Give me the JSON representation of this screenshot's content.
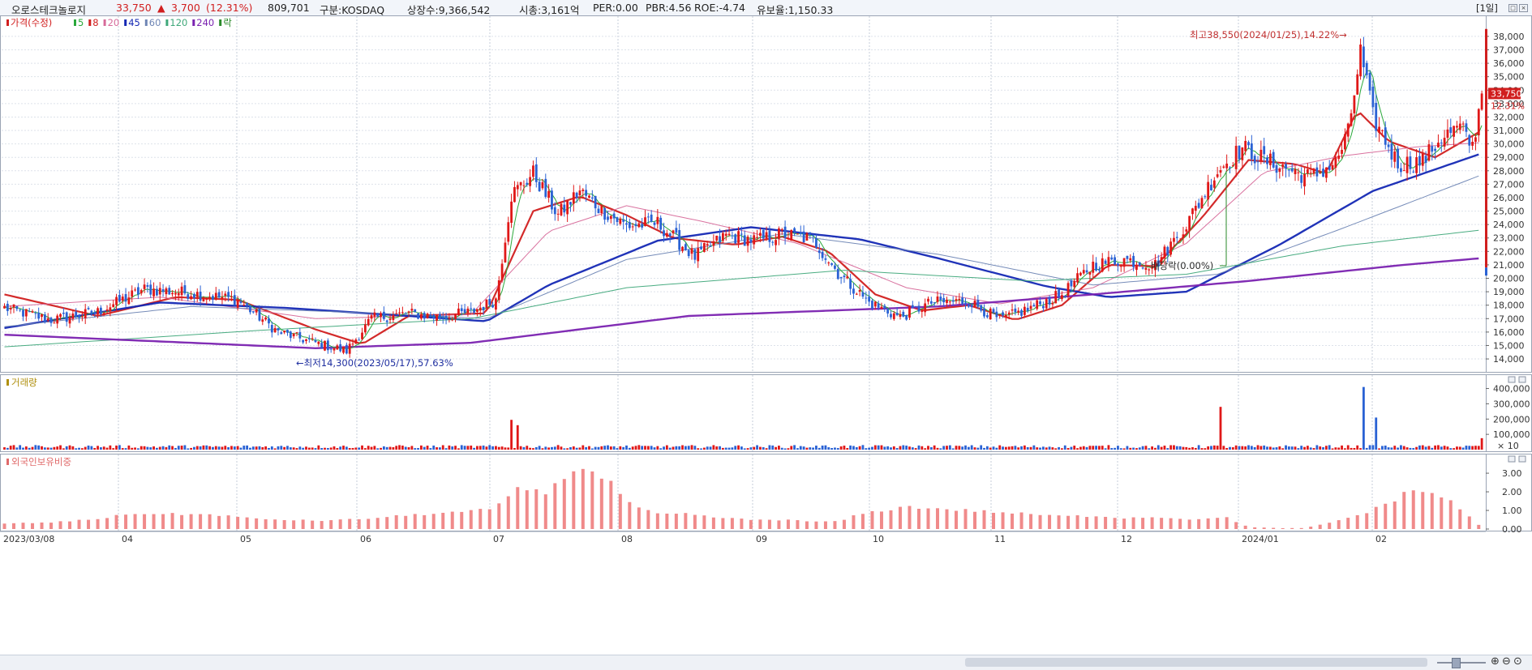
{
  "header": {
    "name": "오로스테크놀로지",
    "price": "33,750",
    "change_arrow": "▲",
    "change": "3,700",
    "change_pct": "(12.31%)",
    "volume": "809,701",
    "market": "구분:KOSDAQ",
    "shares": "상장수:9,366,542",
    "mcap": "시총:3,161억",
    "per": "PER:0.00",
    "pbr": "PBR:4.56",
    "roe": "ROE:-4.74",
    "retention": "유보율:1,150.33",
    "period": "[1일]"
  },
  "price_panel": {
    "legend": [
      {
        "label": "가격(수정)",
        "color": "#d11f1f"
      },
      {
        "label": "5",
        "color": "#2aa83a"
      },
      {
        "label": "8",
        "color": "#d11f1f"
      },
      {
        "label": "20",
        "color": "#d76a9a"
      },
      {
        "label": "45",
        "color": "#1428b4"
      },
      {
        "label": "60",
        "color": "#6f86b5"
      },
      {
        "label": "120",
        "color": "#3fa87a"
      },
      {
        "label": "240",
        "color": "#7a22b0"
      },
      {
        "label": "락",
        "color": "#2a8a2a"
      }
    ],
    "max_annotation": "최고38,550(2024/01/25),14.22%→",
    "min_annotation": "←최저14,300(2023/05/17),57.63%",
    "dividend_annotation": "배당락(0.00%)",
    "price_tag": "33,750",
    "pct_tag": "12.31%"
  },
  "volume_panel": {
    "title": "거래량",
    "unit": "× 10"
  },
  "foreign_panel": {
    "title": "외국인보유비중"
  },
  "chart_data": [
    {
      "type": "candlestick",
      "title": "오로스테크놀로지",
      "yticks": [
        14000,
        15000,
        16000,
        17000,
        18000,
        19000,
        20000,
        21000,
        22000,
        23000,
        24000,
        25000,
        26000,
        27000,
        28000,
        29000,
        30000,
        31000,
        32000,
        33000,
        34000,
        35000,
        36000,
        37000,
        38000
      ],
      "ytick_labels": [
        "14,000",
        "15,000",
        "16,000",
        "17,000",
        "18,000",
        "19,000",
        "20,000",
        "21,000",
        "22,000",
        "23,000",
        "24,000",
        "25,000",
        "26,000",
        "27,000",
        "28,000",
        "29,000",
        "30,000",
        "31,000",
        "32,000",
        "33,000",
        "34,000",
        "35,000",
        "36,000",
        "37,000",
        "38,000"
      ],
      "ylim": [
        13400,
        39200
      ],
      "last_close": 33750,
      "high": 38550,
      "low": 14300,
      "series": [
        {
          "name": "5",
          "color": "#2aa83a"
        },
        {
          "name": "8",
          "color": "#d11f1f"
        },
        {
          "name": "20",
          "color": "#d76a9a"
        },
        {
          "name": "45",
          "color": "#1428b4"
        },
        {
          "name": "60",
          "color": "#6f86b5"
        },
        {
          "name": "120",
          "color": "#3fa87a"
        },
        {
          "name": "240",
          "color": "#7a22b0"
        }
      ],
      "x_categories": [
        "2023/03/08",
        "04",
        "05",
        "06",
        "07",
        "08",
        "09",
        "10",
        "11",
        "12",
        "2024/01",
        "02"
      ],
      "closes": [
        [
          0,
          17800
        ],
        [
          15,
          16900
        ],
        [
          30,
          17500
        ],
        [
          45,
          19200
        ],
        [
          60,
          18900
        ],
        [
          75,
          18400
        ],
        [
          88,
          16000
        ],
        [
          100,
          15200
        ],
        [
          110,
          14600
        ],
        [
          118,
          17000
        ],
        [
          130,
          17400
        ],
        [
          140,
          17100
        ],
        [
          150,
          17500
        ],
        [
          158,
          18400
        ],
        [
          163,
          26200
        ],
        [
          170,
          27800
        ],
        [
          178,
          24700
        ],
        [
          185,
          26500
        ],
        [
          192,
          25100
        ],
        [
          200,
          23900
        ],
        [
          210,
          24100
        ],
        [
          222,
          21600
        ],
        [
          232,
          23200
        ],
        [
          242,
          22800
        ],
        [
          250,
          23300
        ],
        [
          260,
          22900
        ],
        [
          268,
          20400
        ],
        [
          278,
          18200
        ],
        [
          288,
          17100
        ],
        [
          298,
          18200
        ],
        [
          310,
          18300
        ],
        [
          320,
          16900
        ],
        [
          330,
          17800
        ],
        [
          340,
          18800
        ],
        [
          350,
          21000
        ],
        [
          360,
          21400
        ],
        [
          370,
          21000
        ],
        [
          380,
          24000
        ],
        [
          390,
          28000
        ],
        [
          398,
          29700
        ],
        [
          406,
          28700
        ],
        [
          414,
          28000
        ],
        [
          420,
          27500
        ],
        [
          428,
          28600
        ],
        [
          432,
          30800
        ],
        [
          436,
          36800
        ],
        [
          440,
          32000
        ],
        [
          448,
          28500
        ],
        [
          456,
          28700
        ],
        [
          462,
          30500
        ],
        [
          468,
          31200
        ],
        [
          472,
          29800
        ],
        [
          475,
          33750
        ]
      ],
      "ma_values": {
        "8": [
          [
            0,
            18800
          ],
          [
            30,
            17200
          ],
          [
            55,
            18600
          ],
          [
            75,
            18400
          ],
          [
            100,
            16200
          ],
          [
            115,
            15100
          ],
          [
            130,
            17200
          ],
          [
            155,
            17400
          ],
          [
            170,
            25000
          ],
          [
            185,
            26100
          ],
          [
            200,
            24700
          ],
          [
            215,
            23000
          ],
          [
            235,
            22500
          ],
          [
            250,
            23100
          ],
          [
            265,
            22000
          ],
          [
            280,
            18800
          ],
          [
            295,
            17600
          ],
          [
            310,
            18000
          ],
          [
            325,
            16900
          ],
          [
            340,
            18000
          ],
          [
            355,
            21000
          ],
          [
            370,
            20900
          ],
          [
            385,
            24500
          ],
          [
            400,
            28800
          ],
          [
            415,
            28500
          ],
          [
            425,
            27800
          ],
          [
            435,
            32500
          ],
          [
            445,
            30200
          ],
          [
            460,
            29000
          ],
          [
            475,
            31000
          ]
        ],
        "20": [
          [
            0,
            17900
          ],
          [
            50,
            18600
          ],
          [
            100,
            17000
          ],
          [
            150,
            17300
          ],
          [
            175,
            23500
          ],
          [
            200,
            25400
          ],
          [
            225,
            24200
          ],
          [
            255,
            22600
          ],
          [
            290,
            19300
          ],
          [
            320,
            18100
          ],
          [
            350,
            19300
          ],
          [
            380,
            22600
          ],
          [
            405,
            27900
          ],
          [
            430,
            29100
          ],
          [
            455,
            29800
          ],
          [
            475,
            30100
          ]
        ],
        "45": [
          [
            0,
            16300
          ],
          [
            50,
            18200
          ],
          [
            90,
            17800
          ],
          [
            130,
            17200
          ],
          [
            155,
            16800
          ],
          [
            175,
            19500
          ],
          [
            210,
            22800
          ],
          [
            240,
            23800
          ],
          [
            275,
            22900
          ],
          [
            300,
            21500
          ],
          [
            335,
            19400
          ],
          [
            355,
            18600
          ],
          [
            380,
            19000
          ],
          [
            410,
            22500
          ],
          [
            440,
            26500
          ],
          [
            475,
            29300
          ]
        ],
        "60": [
          [
            0,
            16400
          ],
          [
            60,
            17900
          ],
          [
            120,
            17400
          ],
          [
            155,
            17000
          ],
          [
            200,
            21400
          ],
          [
            250,
            23300
          ],
          [
            300,
            21800
          ],
          [
            350,
            19500
          ],
          [
            390,
            20300
          ],
          [
            430,
            23700
          ],
          [
            475,
            27700
          ]
        ],
        "120": [
          [
            0,
            14900
          ],
          [
            80,
            16100
          ],
          [
            150,
            17000
          ],
          [
            200,
            19300
          ],
          [
            270,
            20600
          ],
          [
            330,
            19800
          ],
          [
            380,
            20300
          ],
          [
            430,
            22400
          ],
          [
            475,
            23600
          ]
        ],
        "240": [
          [
            0,
            15800
          ],
          [
            100,
            14800
          ],
          [
            150,
            15200
          ],
          [
            220,
            17200
          ],
          [
            300,
            17900
          ],
          [
            350,
            18800
          ],
          [
            400,
            19800
          ],
          [
            450,
            21000
          ],
          [
            475,
            21500
          ]
        ]
      }
    },
    {
      "type": "bar",
      "title": "거래량",
      "unit": "× 10",
      "yticks": [
        100000,
        200000,
        300000,
        400000
      ],
      "ytick_labels": [
        "100,000",
        "200,000",
        "300,000",
        "400,000"
      ],
      "ylim": [
        0,
        440000
      ],
      "peaks": [
        [
          163,
          195000
        ],
        [
          165,
          160000
        ],
        [
          391,
          280000
        ],
        [
          437,
          410000
        ],
        [
          441,
          210000
        ],
        [
          475,
          75000
        ]
      ],
      "baseline_volume": 20000
    },
    {
      "type": "bar",
      "title": "외국인보유비중",
      "yticks": [
        0,
        1,
        2,
        3
      ],
      "ytick_labels": [
        "0.00",
        "1.00",
        "2.00",
        "3.00"
      ],
      "ylim": [
        0,
        3.7
      ],
      "values": [
        [
          0,
          0.3
        ],
        [
          15,
          0.35
        ],
        [
          30,
          0.55
        ],
        [
          40,
          0.8
        ],
        [
          45,
          0.85
        ],
        [
          50,
          0.8
        ],
        [
          60,
          0.8
        ],
        [
          70,
          0.75
        ],
        [
          80,
          0.55
        ],
        [
          90,
          0.5
        ],
        [
          100,
          0.45
        ],
        [
          110,
          0.5
        ],
        [
          120,
          0.6
        ],
        [
          130,
          0.75
        ],
        [
          140,
          0.85
        ],
        [
          150,
          0.95
        ],
        [
          158,
          1.1
        ],
        [
          163,
          2.0
        ],
        [
          167,
          2.2
        ],
        [
          175,
          2.0
        ],
        [
          180,
          2.8
        ],
        [
          185,
          3.5
        ],
        [
          190,
          2.9
        ],
        [
          196,
          2.3
        ],
        [
          202,
          1.2
        ],
        [
          210,
          0.8
        ],
        [
          220,
          0.8
        ],
        [
          230,
          0.6
        ],
        [
          240,
          0.5
        ],
        [
          250,
          0.5
        ],
        [
          260,
          0.4
        ],
        [
          268,
          0.4
        ],
        [
          275,
          0.8
        ],
        [
          282,
          1.0
        ],
        [
          290,
          1.2
        ],
        [
          300,
          1.1
        ],
        [
          310,
          1.0
        ],
        [
          320,
          0.9
        ],
        [
          330,
          0.8
        ],
        [
          338,
          0.7
        ],
        [
          345,
          0.7
        ],
        [
          352,
          0.7
        ],
        [
          360,
          0.6
        ],
        [
          370,
          0.65
        ],
        [
          380,
          0.55
        ],
        [
          386,
          0.5
        ],
        [
          392,
          0.7
        ],
        [
          400,
          0.1
        ],
        [
          410,
          0.05
        ],
        [
          418,
          0.05
        ],
        [
          425,
          0.3
        ],
        [
          432,
          0.6
        ],
        [
          438,
          0.9
        ],
        [
          445,
          1.4
        ],
        [
          452,
          2.1
        ],
        [
          458,
          2.0
        ],
        [
          464,
          1.6
        ],
        [
          470,
          0.8
        ],
        [
          475,
          0.1
        ]
      ]
    }
  ]
}
